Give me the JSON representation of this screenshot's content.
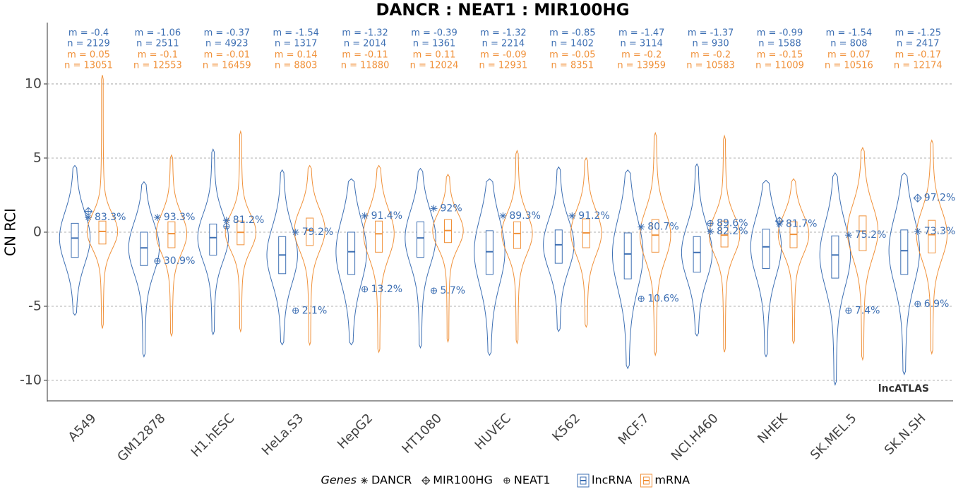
{
  "chart_data": {
    "type": "violin",
    "title": "DANCR : NEAT1 : MIR100HG",
    "y_label": "CN RCI",
    "source": "lncATLAS",
    "ylim": [
      -11.38,
      14.14
    ],
    "yticks": [
      -10,
      -5,
      0,
      5,
      10
    ],
    "grid": true,
    "categories": [
      "A549",
      "GM12878",
      "H1.hESC",
      "HeLa.S3",
      "HepG2",
      "HT1080",
      "HUVEC",
      "K562",
      "MCF.7",
      "NCI.H460",
      "NHEK",
      "SK.MEL.5",
      "SK.N.SH"
    ],
    "series": [
      {
        "name": "lncRNA",
        "color": "#3d6fb3",
        "values": [
          -0.4,
          -1.06,
          -0.37,
          -1.54,
          -1.32,
          -0.39,
          -1.32,
          -0.85,
          -1.47,
          -1.37,
          -0.99,
          -1.54,
          -1.25
        ],
        "value_labels": [
          "m = -0.4",
          "m = -1.06",
          "m = -0.37",
          "m = -1.54",
          "m = -1.32",
          "m = -0.39",
          "m = -1.32",
          "m = -0.85",
          "m = -1.47",
          "m = -1.37",
          "m = -0.99",
          "m = -1.54",
          "m = -1.25"
        ],
        "n": [
          2129,
          2511,
          4923,
          1317,
          2014,
          1361,
          2214,
          1402,
          3114,
          930,
          1588,
          808,
          2417
        ],
        "n_labels": [
          "n = 2129",
          "n = 2511",
          "n = 4923",
          "n = 1317",
          "n = 2014",
          "n = 1361",
          "n = 2214",
          "n = 1402",
          "n = 3114",
          "n = 930",
          "n = 1588",
          "n = 808",
          "n = 2417"
        ],
        "q1": [
          -1.7,
          -2.25,
          -1.55,
          -2.8,
          -2.85,
          -1.7,
          -2.85,
          -2.1,
          -3.15,
          -2.7,
          -2.45,
          -3.1,
          -2.85
        ],
        "q3": [
          0.6,
          0.0,
          0.55,
          -0.3,
          0.0,
          0.7,
          0.1,
          0.15,
          -0.05,
          -0.3,
          0.2,
          -0.25,
          0.15
        ],
        "min": [
          -5.6,
          -8.4,
          -6.9,
          -7.6,
          -7.6,
          -7.8,
          -8.3,
          -6.7,
          -9.2,
          -7.0,
          -8.4,
          -10.3,
          -9.6
        ],
        "max": [
          4.5,
          3.4,
          5.6,
          4.2,
          3.6,
          4.3,
          3.6,
          4.4,
          4.2,
          4.6,
          3.5,
          4.0,
          4.0
        ]
      },
      {
        "name": "mRNA",
        "color": "#f0913a",
        "values": [
          0.05,
          -0.1,
          -0.01,
          0.14,
          -0.11,
          0.11,
          -0.09,
          -0.05,
          -0.2,
          -0.2,
          -0.15,
          0.07,
          -0.17
        ],
        "value_labels": [
          "m = 0.05",
          "m = -0.1",
          "m = -0.01",
          "m = 0.14",
          "m = -0.11",
          "m = 0.11",
          "m = -0.09",
          "m = -0.05",
          "m = -0.2",
          "m = -0.2",
          "m = -0.15",
          "m = 0.07",
          "m = -0.17"
        ],
        "n": [
          13051,
          12553,
          16459,
          8803,
          11880,
          12024,
          12931,
          8351,
          13959,
          10583,
          11009,
          10516,
          12174
        ],
        "n_labels": [
          "n = 13051",
          "n = 12553",
          "n = 16459",
          "n = 8803",
          "n = 11880",
          "n = 12024",
          "n = 12931",
          "n = 8351",
          "n = 13959",
          "n = 10583",
          "n = 11009",
          "n = 10516",
          "n = 12174"
        ],
        "q1": [
          -0.8,
          -1.05,
          -0.85,
          -0.9,
          -1.35,
          -0.7,
          -1.1,
          -1.05,
          -1.35,
          -1.0,
          -1.05,
          -1.25,
          -1.4
        ],
        "q3": [
          0.75,
          0.7,
          0.75,
          0.95,
          0.75,
          0.85,
          0.7,
          0.9,
          0.85,
          0.75,
          0.7,
          1.1,
          0.8
        ],
        "min": [
          -6.5,
          -7.0,
          -6.7,
          -7.6,
          -8.1,
          -7.4,
          -7.5,
          -6.4,
          -8.3,
          -8.1,
          -7.5,
          -8.6,
          -8.2
        ],
        "max": [
          10.6,
          5.2,
          6.8,
          4.5,
          4.5,
          3.9,
          5.5,
          5.0,
          6.7,
          6.5,
          3.6,
          5.7,
          6.2
        ]
      }
    ],
    "genes_title": "Genes",
    "genes": [
      {
        "name": "DANCR",
        "shape": "asterisk",
        "color": "#3d6fb3",
        "values": [
          1.0,
          1.0,
          0.8,
          0.0,
          1.1,
          1.6,
          1.1,
          1.1,
          0.35,
          0.05,
          0.55,
          -0.2,
          0.05
        ],
        "labels": [
          "83.3%",
          "93.3%",
          "81.2%",
          "79.2%",
          "91.4%",
          "92%",
          "89.3%",
          "91.2%",
          "80.7%",
          "82.2%",
          "81.7%",
          "75.2%",
          "73.3%"
        ]
      },
      {
        "name": "MIR100HG",
        "shape": "diamond-plus",
        "color": "#3d6fb3",
        "values": [
          1.4,
          null,
          null,
          null,
          null,
          null,
          null,
          null,
          null,
          null,
          0.75,
          null,
          2.3
        ],
        "labels": [
          null,
          null,
          null,
          null,
          null,
          null,
          null,
          null,
          null,
          null,
          null,
          null,
          "97.2%"
        ]
      },
      {
        "name": "NEAT1",
        "shape": "circle-plus",
        "color": "#3d6fb3",
        "values": [
          null,
          -1.95,
          0.4,
          -5.3,
          -3.85,
          -3.95,
          null,
          null,
          -4.5,
          0.6,
          null,
          -5.3,
          -4.85
        ],
        "labels": [
          null,
          "30.9%",
          null,
          "2.1%",
          "13.2%",
          "5.7%",
          null,
          null,
          "10.6%",
          "89.6%",
          null,
          "7.4%",
          "6.9%"
        ]
      }
    ]
  }
}
